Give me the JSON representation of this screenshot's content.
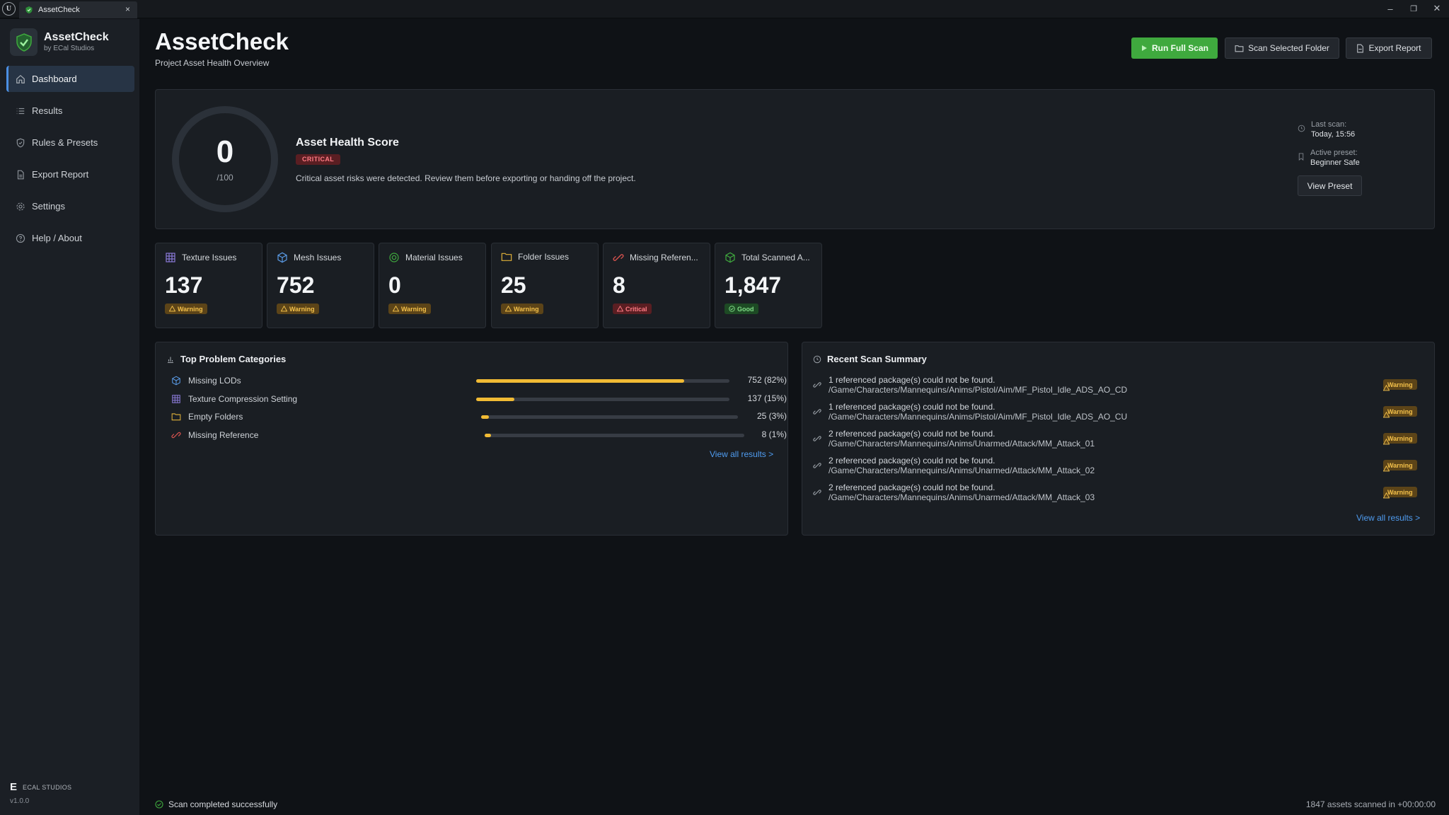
{
  "window": {
    "tab_title": "AssetCheck",
    "tab_close": "×",
    "minimize": "–",
    "restore": "❐",
    "close": "✕"
  },
  "sidebar": {
    "brand_name": "AssetCheck",
    "brand_sub": "by ECal Studios",
    "items": [
      {
        "label": "Dashboard",
        "icon": "home-icon",
        "active": true
      },
      {
        "label": "Results",
        "icon": "list-icon",
        "active": false
      },
      {
        "label": "Rules & Presets",
        "icon": "shield-icon",
        "active": false
      },
      {
        "label": "Export Report",
        "icon": "document-icon",
        "active": false
      },
      {
        "label": "Settings",
        "icon": "gear-icon",
        "active": false
      },
      {
        "label": "Help / About",
        "icon": "help-icon",
        "active": false
      }
    ],
    "footer_logo": "E",
    "footer_name": "ECAL STUDIOS",
    "version": "v1.0.0"
  },
  "header": {
    "title": "AssetCheck",
    "subtitle": "Project Asset Health Overview",
    "run_full_scan": "Run Full Scan",
    "scan_selected_folder": "Scan Selected Folder",
    "export_report": "Export Report"
  },
  "health": {
    "score": "0",
    "max": "/100",
    "score_fraction": 0,
    "title": "Asset Health Score",
    "badge": "CRITICAL",
    "description": "Critical asset risks were detected. Review them before exporting or handing off the project.",
    "last_scan_label": "Last scan:",
    "last_scan_value": "Today, 15:56",
    "preset_label": "Active preset:",
    "preset_value": "Beginner Safe",
    "view_preset": "View Preset"
  },
  "stats": [
    {
      "title": "Texture Issues",
      "value": "137",
      "status": "Warning",
      "icon": "texture-grid-icon",
      "level": "warn"
    },
    {
      "title": "Mesh Issues",
      "value": "752",
      "status": "Warning",
      "icon": "cube-icon",
      "level": "warn"
    },
    {
      "title": "Material Issues",
      "value": "0",
      "status": "Warning",
      "icon": "material-sphere-icon",
      "level": "warn"
    },
    {
      "title": "Folder Issues",
      "value": "25",
      "status": "Warning",
      "icon": "folder-icon",
      "level": "warn"
    },
    {
      "title": "Missing Referen...",
      "value": "8",
      "status": "Critical",
      "icon": "broken-link-icon",
      "level": "crit"
    },
    {
      "title": "Total Scanned A...",
      "value": "1,847",
      "status": "Good",
      "icon": "box-icon",
      "level": "good"
    }
  ],
  "top_problems": {
    "title": "Top Problem Categories",
    "rows": [
      {
        "name": "Missing LODs",
        "value_text": "752 (82%)",
        "fraction": 0.82,
        "icon": "cube-icon"
      },
      {
        "name": "Texture Compression Setting",
        "value_text": "137 (15%)",
        "fraction": 0.15,
        "icon": "texture-grid-icon"
      },
      {
        "name": "Empty Folders",
        "value_text": "25 (3%)",
        "fraction": 0.03,
        "icon": "folder-icon"
      },
      {
        "name": "Missing Reference",
        "value_text": "8 (1%)",
        "fraction": 0.01,
        "icon": "broken-link-icon"
      }
    ],
    "view_all": "View all results >"
  },
  "recent_scan": {
    "title": "Recent Scan Summary",
    "rows": [
      {
        "message": "1 referenced package(s) could not be found.",
        "path": "/Game/Characters/Mannequins/Anims/Pistol/Aim/MF_Pistol_Idle_ADS_AO_CD",
        "status": "Warning"
      },
      {
        "message": "1 referenced package(s) could not be found.",
        "path": "/Game/Characters/Mannequins/Anims/Pistol/Aim/MF_Pistol_Idle_ADS_AO_CU",
        "status": "Warning"
      },
      {
        "message": "2 referenced package(s) could not be found.",
        "path": "/Game/Characters/Mannequins/Anims/Unarmed/Attack/MM_Attack_01",
        "status": "Warning"
      },
      {
        "message": "2 referenced package(s) could not be found.",
        "path": "/Game/Characters/Mannequins/Anims/Unarmed/Attack/MM_Attack_02",
        "status": "Warning"
      },
      {
        "message": "2 referenced package(s) could not be found.",
        "path": "/Game/Characters/Mannequins/Anims/Unarmed/Attack/MM_Attack_03",
        "status": "Warning"
      }
    ],
    "view_all": "View all results >"
  },
  "status_bar": {
    "left": "Scan completed successfully",
    "right": "1847 assets scanned in +00:00:00"
  },
  "colors": {
    "accent_green": "#3fa93e",
    "warning": "#f1bb34",
    "critical": "#ff7b84",
    "link": "#4f9cf0",
    "active_nav": "#4b8fe3"
  }
}
